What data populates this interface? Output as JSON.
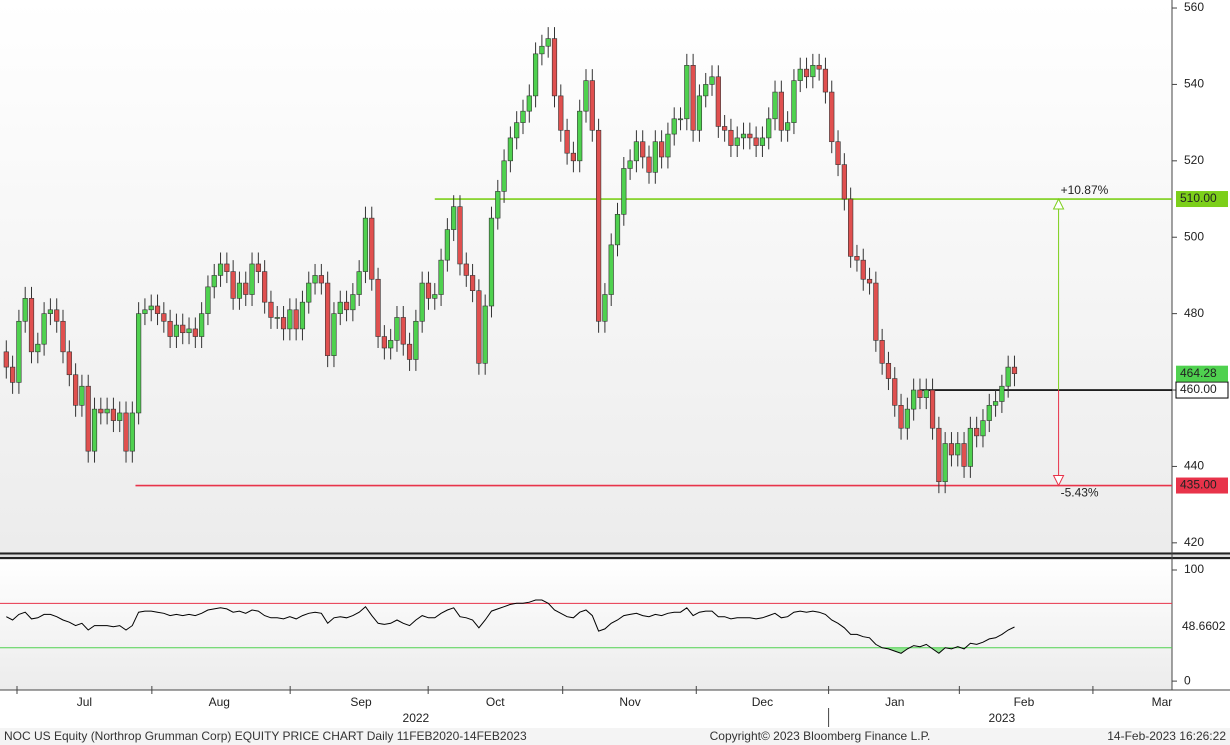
{
  "chart_data": {
    "type": "candlestick",
    "up_color": "#4fd14f",
    "down_color": "#e0504f",
    "open": [
      470,
      466,
      462,
      478,
      484,
      470,
      472,
      480,
      481,
      478,
      470,
      464,
      456,
      461,
      444,
      455,
      454,
      455,
      452,
      454,
      444,
      454,
      480,
      481,
      482,
      480,
      478,
      474,
      477,
      475,
      476,
      474,
      480,
      487,
      490,
      493,
      491,
      484,
      488,
      485,
      493,
      491,
      483,
      479,
      479,
      476,
      481,
      476,
      483,
      488,
      490,
      488,
      469,
      480,
      483,
      481,
      485,
      491,
      505,
      489,
      474,
      471,
      473,
      479,
      472,
      468,
      478,
      488,
      484,
      485,
      494,
      502,
      508,
      493,
      490,
      486,
      467,
      482,
      505,
      512,
      520,
      526,
      530,
      533,
      537,
      548,
      550,
      552,
      537,
      528,
      522,
      520,
      533,
      541,
      528,
      478,
      485,
      498,
      506,
      518,
      520,
      525,
      521,
      517,
      525,
      521,
      527,
      531,
      531,
      545,
      528,
      537,
      540,
      542,
      529,
      528,
      524,
      526,
      527,
      526,
      524,
      526,
      531,
      538,
      528,
      530,
      541,
      544,
      542,
      545,
      544,
      538,
      525,
      519,
      510,
      495,
      494,
      489,
      488,
      473,
      467,
      463,
      456,
      450,
      455,
      460,
      458,
      460,
      450,
      436,
      446,
      443,
      446,
      440,
      450,
      448,
      452,
      456,
      457,
      461,
      466
    ],
    "high": [
      473,
      469,
      481,
      487,
      487,
      475,
      483,
      484,
      484,
      481,
      473,
      467,
      464,
      464,
      458,
      458,
      458,
      458,
      457,
      457,
      457,
      483,
      484,
      485,
      485,
      483,
      481,
      480,
      480,
      479,
      479,
      483,
      490,
      493,
      496,
      496,
      494,
      491,
      491,
      496,
      496,
      494,
      486,
      482,
      482,
      484,
      484,
      486,
      491,
      493,
      493,
      491,
      483,
      486,
      486,
      488,
      494,
      508,
      508,
      492,
      477,
      476,
      482,
      482,
      475,
      481,
      491,
      491,
      488,
      497,
      505,
      511,
      511,
      496,
      493,
      489,
      485,
      508,
      515,
      523,
      529,
      533,
      536,
      540,
      551,
      553,
      555,
      555,
      540,
      531,
      525,
      536,
      544,
      544,
      531,
      488,
      501,
      509,
      521,
      523,
      528,
      528,
      524,
      528,
      528,
      530,
      534,
      534,
      548,
      548,
      540,
      543,
      545,
      545,
      532,
      531,
      529,
      530,
      530,
      529,
      529,
      534,
      541,
      541,
      533,
      544,
      547,
      547,
      548,
      548,
      547,
      541,
      528,
      522,
      513,
      498,
      497,
      492,
      491,
      476,
      470,
      466,
      459,
      458,
      463,
      463,
      463,
      463,
      453,
      449,
      449,
      449,
      449,
      453,
      453,
      455,
      459,
      460,
      464,
      469,
      469
    ],
    "low": [
      463,
      459,
      459,
      475,
      467,
      467,
      469,
      477,
      475,
      467,
      461,
      453,
      453,
      441,
      441,
      451,
      451,
      449,
      449,
      441,
      441,
      451,
      477,
      478,
      477,
      475,
      471,
      471,
      472,
      472,
      471,
      471,
      477,
      484,
      487,
      488,
      481,
      481,
      482,
      482,
      488,
      480,
      476,
      476,
      473,
      473,
      473,
      473,
      480,
      485,
      485,
      466,
      466,
      477,
      478,
      478,
      482,
      488,
      486,
      471,
      468,
      468,
      470,
      469,
      465,
      465,
      475,
      481,
      481,
      482,
      491,
      499,
      490,
      487,
      483,
      464,
      464,
      479,
      502,
      509,
      517,
      523,
      527,
      530,
      534,
      545,
      547,
      534,
      525,
      519,
      517,
      517,
      530,
      525,
      475,
      475,
      482,
      495,
      503,
      515,
      517,
      518,
      514,
      514,
      518,
      518,
      524,
      528,
      528,
      525,
      525,
      534,
      537,
      526,
      525,
      521,
      521,
      523,
      523,
      521,
      521,
      523,
      528,
      525,
      525,
      527,
      538,
      539,
      539,
      541,
      535,
      522,
      516,
      507,
      492,
      491,
      486,
      485,
      470,
      464,
      460,
      453,
      447,
      447,
      452,
      455,
      455,
      447,
      433,
      433,
      440,
      440,
      437,
      437,
      445,
      445,
      449,
      453,
      454,
      458,
      461
    ],
    "close": [
      466,
      462,
      478,
      484,
      470,
      472,
      480,
      481,
      478,
      470,
      464,
      456,
      461,
      444,
      455,
      454,
      455,
      452,
      454,
      444,
      454,
      480,
      481,
      482,
      480,
      478,
      474,
      477,
      475,
      476,
      474,
      480,
      487,
      490,
      493,
      491,
      484,
      488,
      485,
      493,
      491,
      483,
      479,
      479,
      476,
      481,
      476,
      483,
      488,
      490,
      488,
      469,
      480,
      483,
      481,
      485,
      491,
      505,
      489,
      474,
      471,
      473,
      479,
      472,
      468,
      478,
      488,
      484,
      485,
      494,
      502,
      508,
      493,
      490,
      486,
      467,
      482,
      505,
      512,
      520,
      526,
      530,
      533,
      537,
      548,
      550,
      552,
      537,
      528,
      522,
      520,
      533,
      541,
      528,
      478,
      485,
      498,
      506,
      518,
      520,
      525,
      521,
      517,
      525,
      521,
      527,
      531,
      531,
      545,
      528,
      537,
      540,
      542,
      529,
      528,
      524,
      526,
      527,
      526,
      524,
      526,
      531,
      538,
      528,
      530,
      541,
      544,
      542,
      545,
      544,
      538,
      525,
      519,
      510,
      495,
      494,
      489,
      488,
      473,
      467,
      463,
      456,
      450,
      455,
      460,
      458,
      460,
      450,
      436,
      446,
      443,
      446,
      440,
      450,
      448,
      452,
      456,
      457,
      461,
      466,
      464.28
    ],
    "last_label": "464.28",
    "xlim": [
      -1,
      185
    ],
    "xticks": [
      {
        "value": 12.4,
        "label": "Jul"
      },
      {
        "value": 33.8,
        "label": "Aug"
      },
      {
        "value": 56.3,
        "label": "Sep"
      },
      {
        "value": 77.6,
        "label": "Oct"
      },
      {
        "value": 99,
        "label": "Nov"
      },
      {
        "value": 120,
        "label": "Dec"
      },
      {
        "value": 141,
        "label": "Jan"
      },
      {
        "value": 161.5,
        "label": "Feb"
      },
      {
        "value": 183.4,
        "label": "Mar"
      }
    ],
    "year_labels": [
      {
        "value": 65,
        "label": "2022"
      },
      {
        "value": 158,
        "label": "2023"
      }
    ],
    "ylim": [
      417.6,
      562.1
    ],
    "yticks": [
      420,
      440,
      460,
      480,
      500,
      520,
      540,
      560
    ],
    "hlines": [
      {
        "value": 510,
        "label": "510.00",
        "color": "#7ccf1a",
        "start": 68
      },
      {
        "value": 460,
        "label": "460.00",
        "color": "#000000",
        "start": 145
      },
      {
        "value": 435,
        "label": "435.00",
        "color": "#e8334a",
        "start": 20.5
      }
    ],
    "arrows": [
      {
        "from": 460,
        "to": 510,
        "label": "+10.87%",
        "color": "#7ccf1a",
        "at": 167
      },
      {
        "from": 460,
        "to": 435,
        "label": "-5.43%",
        "color": "#e8334a",
        "at": 167
      }
    ],
    "rsi": {
      "color": "#000000",
      "fill": "#7de07d",
      "values": [
        58,
        55,
        60,
        62,
        56,
        57,
        60,
        60,
        58,
        55,
        53,
        50,
        52,
        46,
        50,
        50,
        50,
        49,
        50,
        46,
        50,
        62,
        63,
        63,
        62,
        61,
        59,
        60,
        59,
        60,
        59,
        61,
        64,
        65,
        66,
        65,
        62,
        63,
        61,
        64,
        63,
        59,
        57,
        57,
        56,
        58,
        56,
        59,
        61,
        62,
        61,
        52,
        57,
        58,
        57,
        59,
        62,
        67,
        59,
        52,
        51,
        52,
        55,
        52,
        50,
        55,
        59,
        57,
        57,
        61,
        64,
        66,
        58,
        57,
        55,
        48,
        55,
        63,
        65,
        67,
        69,
        70,
        70,
        71,
        73,
        73,
        70,
        64,
        61,
        58,
        57,
        62,
        64,
        59,
        45,
        47,
        52,
        55,
        59,
        60,
        61,
        59,
        58,
        60,
        59,
        61,
        62,
        62,
        66,
        59,
        62,
        63,
        63,
        58,
        58,
        56,
        57,
        57,
        57,
        56,
        57,
        59,
        61,
        57,
        58,
        62,
        63,
        62,
        63,
        62,
        60,
        55,
        52,
        48,
        42,
        42,
        40,
        39,
        33,
        30,
        29,
        27,
        25,
        29,
        32,
        31,
        33,
        29,
        25,
        30,
        29,
        31,
        29,
        34,
        33,
        35,
        38,
        39,
        42,
        46,
        48.6602
      ],
      "ylim": [
        -8,
        109
      ],
      "yticks": [
        0,
        100
      ],
      "levels": [
        {
          "value": 70,
          "color": "#e8334a"
        },
        {
          "value": 30,
          "color": "#4fd14f"
        }
      ]
    },
    "footer_left": "NOC US Equity (Northrop Grumman Corp) EQUITY PRICE CHART  Daily 11FEB2020-14FEB2023",
    "footer_center": "Copyright© 2023 Bloomberg Finance L.P.",
    "footer_right": "14-Feb-2023 16:26:22"
  }
}
